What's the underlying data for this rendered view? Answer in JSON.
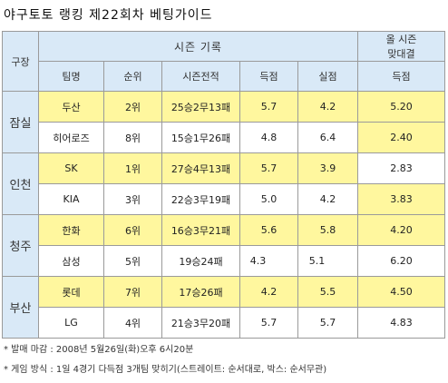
{
  "title": "야구토토 랭킹 제22회차 베팅가이드",
  "headers": {
    "stadium": "구장",
    "season_record": "시즌 기록",
    "season_vs_line1": "올 시즌",
    "season_vs_line2": "맞대결",
    "team": "팀명",
    "rank": "순위",
    "record": "시즌전적",
    "scored": "득점",
    "allowed": "실점",
    "vs_scored": "득점"
  },
  "groups": [
    {
      "stadium": "잠실",
      "rows": [
        {
          "team": "두산",
          "rank": "2위",
          "record": "25승2무13패",
          "scored": "5.7",
          "allowed": "4.2",
          "vs_scored": "5.20"
        },
        {
          "team": "히어로즈",
          "rank": "8위",
          "record": "15승1무26패",
          "scored": "4.8",
          "allowed": "6.4",
          "vs_scored": "2.40"
        }
      ]
    },
    {
      "stadium": "인천",
      "rows": [
        {
          "team": "SK",
          "rank": "1위",
          "record": "27승4무13패",
          "scored": "5.7",
          "allowed": "3.9",
          "vs_scored": "2.83"
        },
        {
          "team": "KIA",
          "rank": "3위",
          "record": "22승3무19패",
          "scored": "5.0",
          "allowed": "4.2",
          "vs_scored": "3.83"
        }
      ]
    },
    {
      "stadium": "청주",
      "rows": [
        {
          "team": "한화",
          "rank": "6위",
          "record": "16승3무21패",
          "scored": "5.6",
          "allowed": "5.8",
          "vs_scored": "4.20"
        },
        {
          "team": "삼성",
          "rank": "5위",
          "record": "19승24패",
          "scored": "4.3",
          "allowed": "5.1",
          "vs_scored": "6.20"
        }
      ]
    },
    {
      "stadium": "부산",
      "rows": [
        {
          "team": "롯데",
          "rank": "7위",
          "record": "17승26패",
          "scored": "4.2",
          "allowed": "5.5",
          "vs_scored": "4.50"
        },
        {
          "team": "LG",
          "rank": "4위",
          "record": "21승3무20패",
          "scored": "5.7",
          "allowed": "5.7",
          "vs_scored": "4.83"
        }
      ]
    }
  ],
  "notes": [
    "* 발매 마감 : 2008년 5월26일(화)오후 6시20분",
    "* 게임 방식 : 1일 4경기 다득점 3개팀 맞히기(스트레이트: 순서대로, 박스: 순서무관)"
  ],
  "colors": {
    "header_bg": "#d9e9f7",
    "highlight_bg": "#fff79e",
    "border": "#9a9a9a"
  }
}
